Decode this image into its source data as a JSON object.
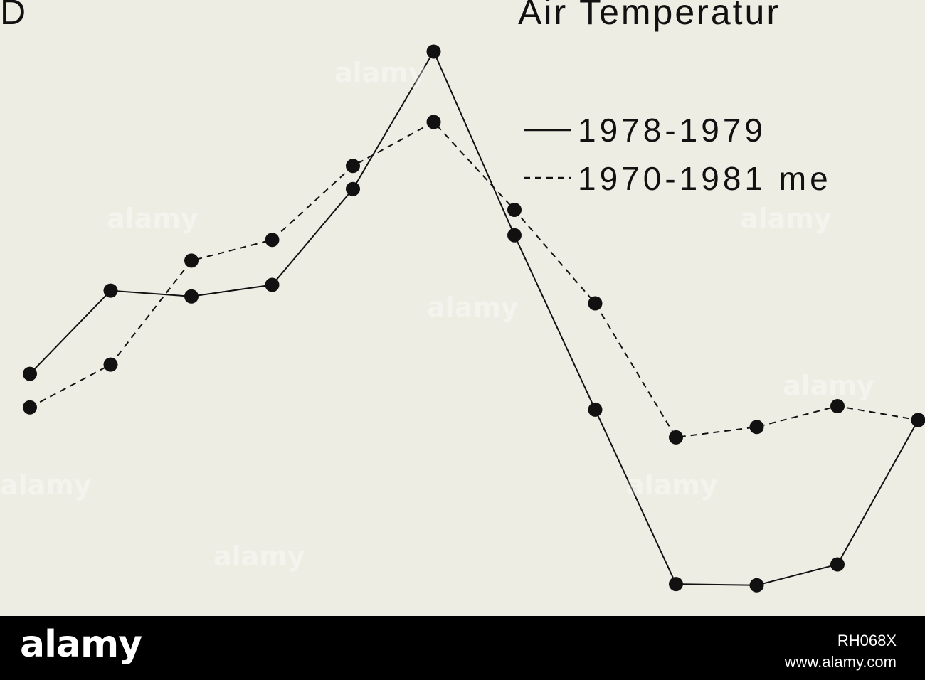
{
  "panel_label": "D",
  "chart_data": {
    "type": "line",
    "title": "Air Temperatur",
    "x": [
      1,
      2,
      3,
      4,
      5,
      6,
      7,
      8,
      9,
      10,
      11,
      12
    ],
    "series": [
      {
        "name": "1978-1979",
        "style": "solid",
        "values": [
          -2.4,
          4.8,
          4.3,
          5.3,
          13.6,
          25.5,
          9.6,
          -5.5,
          -20.6,
          -20.7,
          -18.9,
          -6.4
        ]
      },
      {
        "name": "1970-1981 me",
        "style": "dashed",
        "values": [
          -5.3,
          -1.6,
          7.4,
          9.2,
          15.6,
          19.4,
          11.8,
          3.7,
          -7.9,
          -7.0,
          -5.2,
          -6.4
        ]
      }
    ],
    "ylim": [
      -22.5,
      27.5
    ],
    "xlabel": "",
    "ylabel": "",
    "grid": false,
    "legend_position": "top-right",
    "colors": {
      "line": "#111111",
      "background": "#eeede4"
    }
  },
  "footer": {
    "brand": "alamy",
    "image_id": "RH068X",
    "url": "www.alamy.com"
  },
  "watermarks": [
    "alamy",
    "alamy",
    "alamy",
    "alamy",
    "alamy",
    "alamy",
    "alamy",
    "alamy"
  ]
}
